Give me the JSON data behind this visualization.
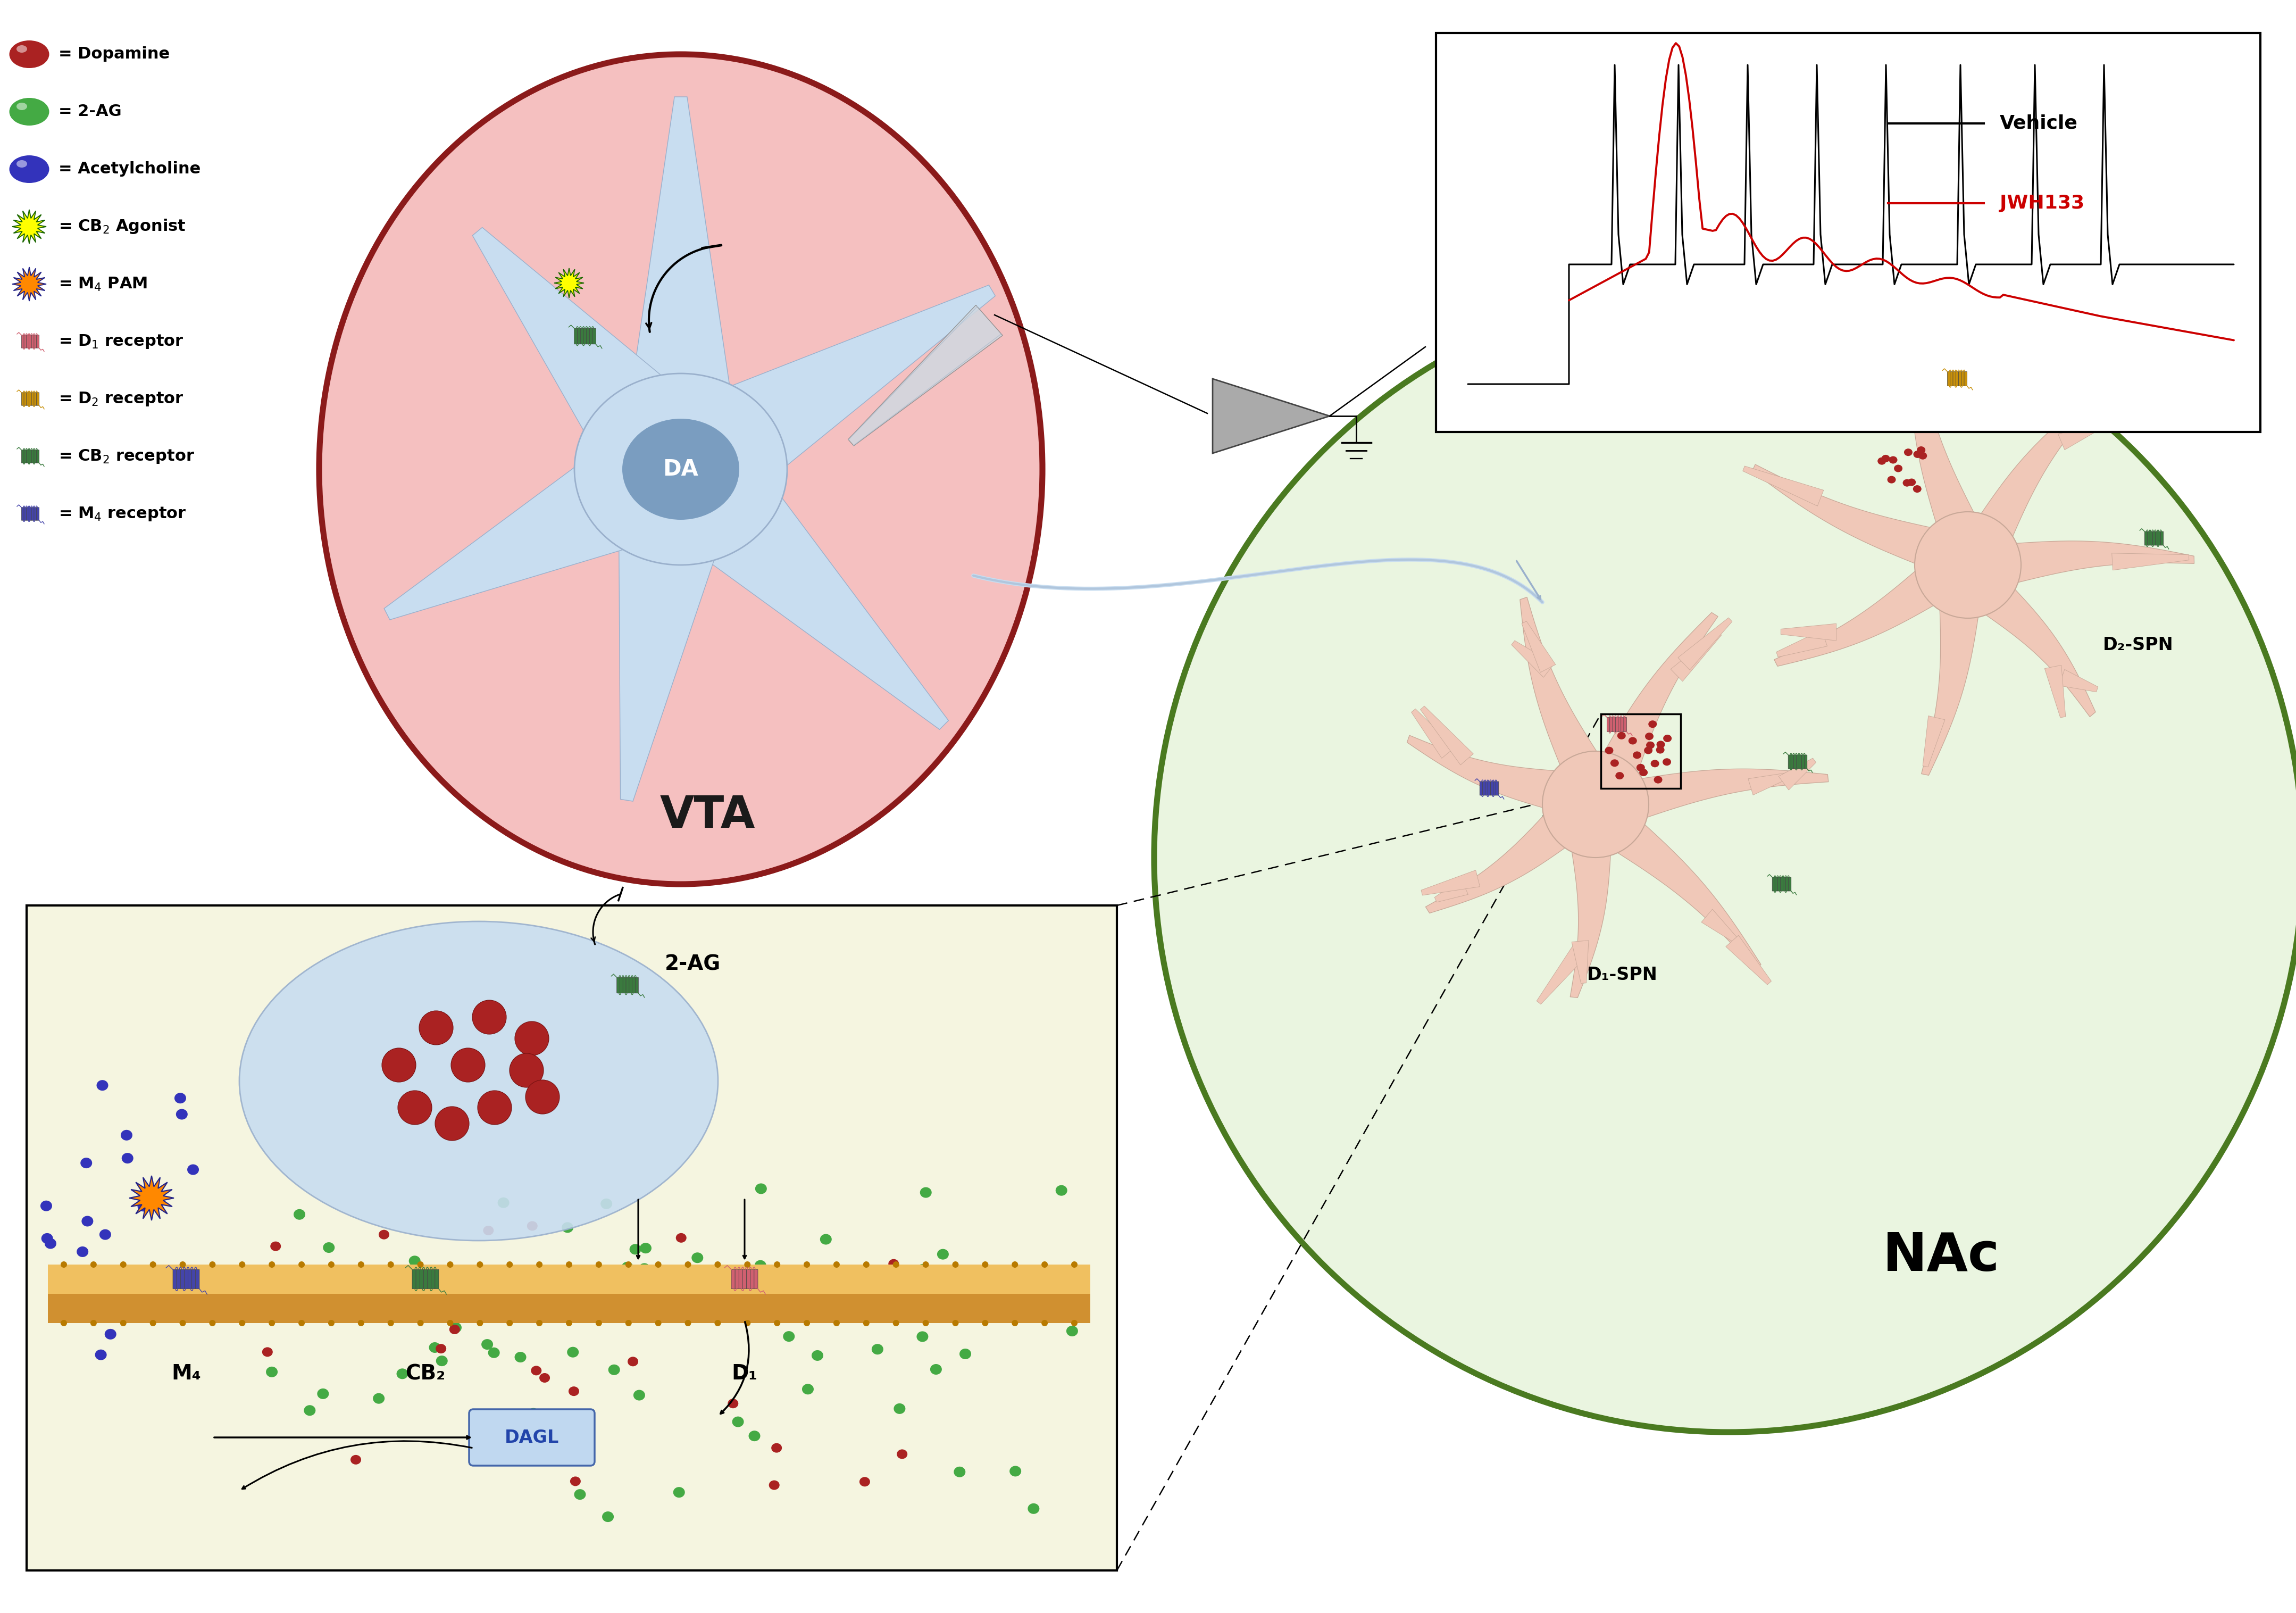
{
  "bg_color": "#ffffff",
  "vta_circle_color": "#f5c0c0",
  "vta_border_color": "#8b1a1a",
  "vta_label": "VTA",
  "vta_label_color": "#1a1a1a",
  "nac_circle_color": "#eaf5e0",
  "nac_border_color": "#4a7a20",
  "nac_label": "NAc",
  "nac_label_color": "#1a1a1a",
  "vehicle_color": "#000000",
  "jwh133_color": "#cc0000",
  "vehicle_label": "Vehicle",
  "jwh133_label": "JWH133",
  "da_label": "DA",
  "da_bg_color": "#7a9dc0",
  "dagl_label": "DAGL",
  "d1spn_label": "D₁-SPN",
  "d2spn_label": "D₂-SPN",
  "2ag_label": "2-AG",
  "m4_label": "M₄",
  "cb2_label": "CB₂",
  "d1_label": "D₁",
  "dopamine_color": "#aa2222",
  "ag2_color": "#44aa44",
  "ach_color": "#3333bb",
  "cb2ag_inner": "#ffff00",
  "cb2ag_outer": "#1a6600",
  "m4pam_inner": "#ff8800",
  "m4pam_outer": "#222288",
  "d1r_color": "#d06070",
  "d2r_color": "#c8900a",
  "cb2r_color": "#3a7a3e",
  "m4r_color": "#4444aa",
  "neuron_fill": "#c8ddf0",
  "neuron_edge": "#9ab0cc",
  "spn_fill": "#f0c8b8",
  "membrane_color1": "#f0c060",
  "membrane_color2": "#d09030",
  "zoom_bg": "#f5f5e0",
  "nac_neuron_fill": "#f0c8b8"
}
